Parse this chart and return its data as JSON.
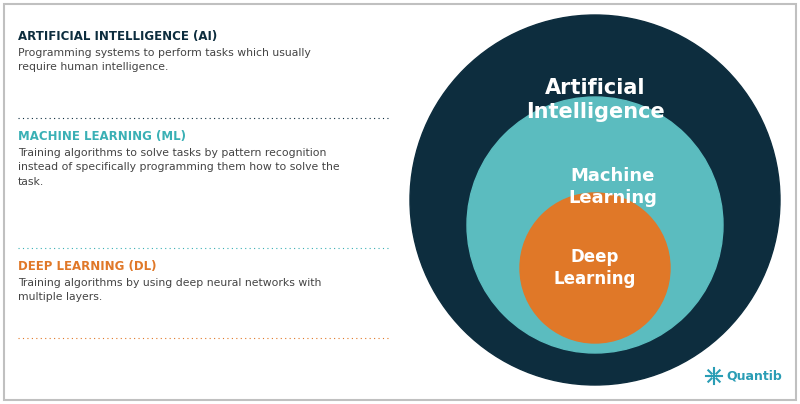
{
  "bg_color": "#ffffff",
  "border_color": "#c0c0c0",
  "ai_circle_color": "#0d2d3e",
  "ml_circle_color": "#5bbcbf",
  "dl_circle_color": "#e07828",
  "circle_text_color": "#ffffff",
  "ai_label": "Artificial\nIntelligence",
  "ml_label": "Machine\nLearning",
  "dl_label": "Deep\nLearning",
  "ai_title": "ARTIFICIAL INTELLIGENCE (AI)",
  "ai_title_color": "#0d2d3e",
  "ai_desc": "Programming systems to perform tasks which usually\nrequire human intelligence.",
  "ai_desc_color": "#444444",
  "ml_title": "MACHINE LEARNING (ML)",
  "ml_title_color": "#3ab0b5",
  "ml_desc": "Training algorithms to solve tasks by pattern recognition\ninstead of specifically programming them how to solve the\ntask.",
  "ml_desc_color": "#444444",
  "dl_title": "DEEP LEARNING (DL)",
  "dl_title_color": "#e07828",
  "dl_desc": "Training algorithms by using deep neural networks with\nmultiple layers.",
  "dl_desc_color": "#444444",
  "sep1_color": "#0d2d3e",
  "sep2_color": "#3ab0b5",
  "sep3_color": "#e07828",
  "quantib_color": "#2a9db5",
  "quantib_text": "Quantib",
  "fig_width": 8.0,
  "fig_height": 4.04,
  "dpi": 100
}
